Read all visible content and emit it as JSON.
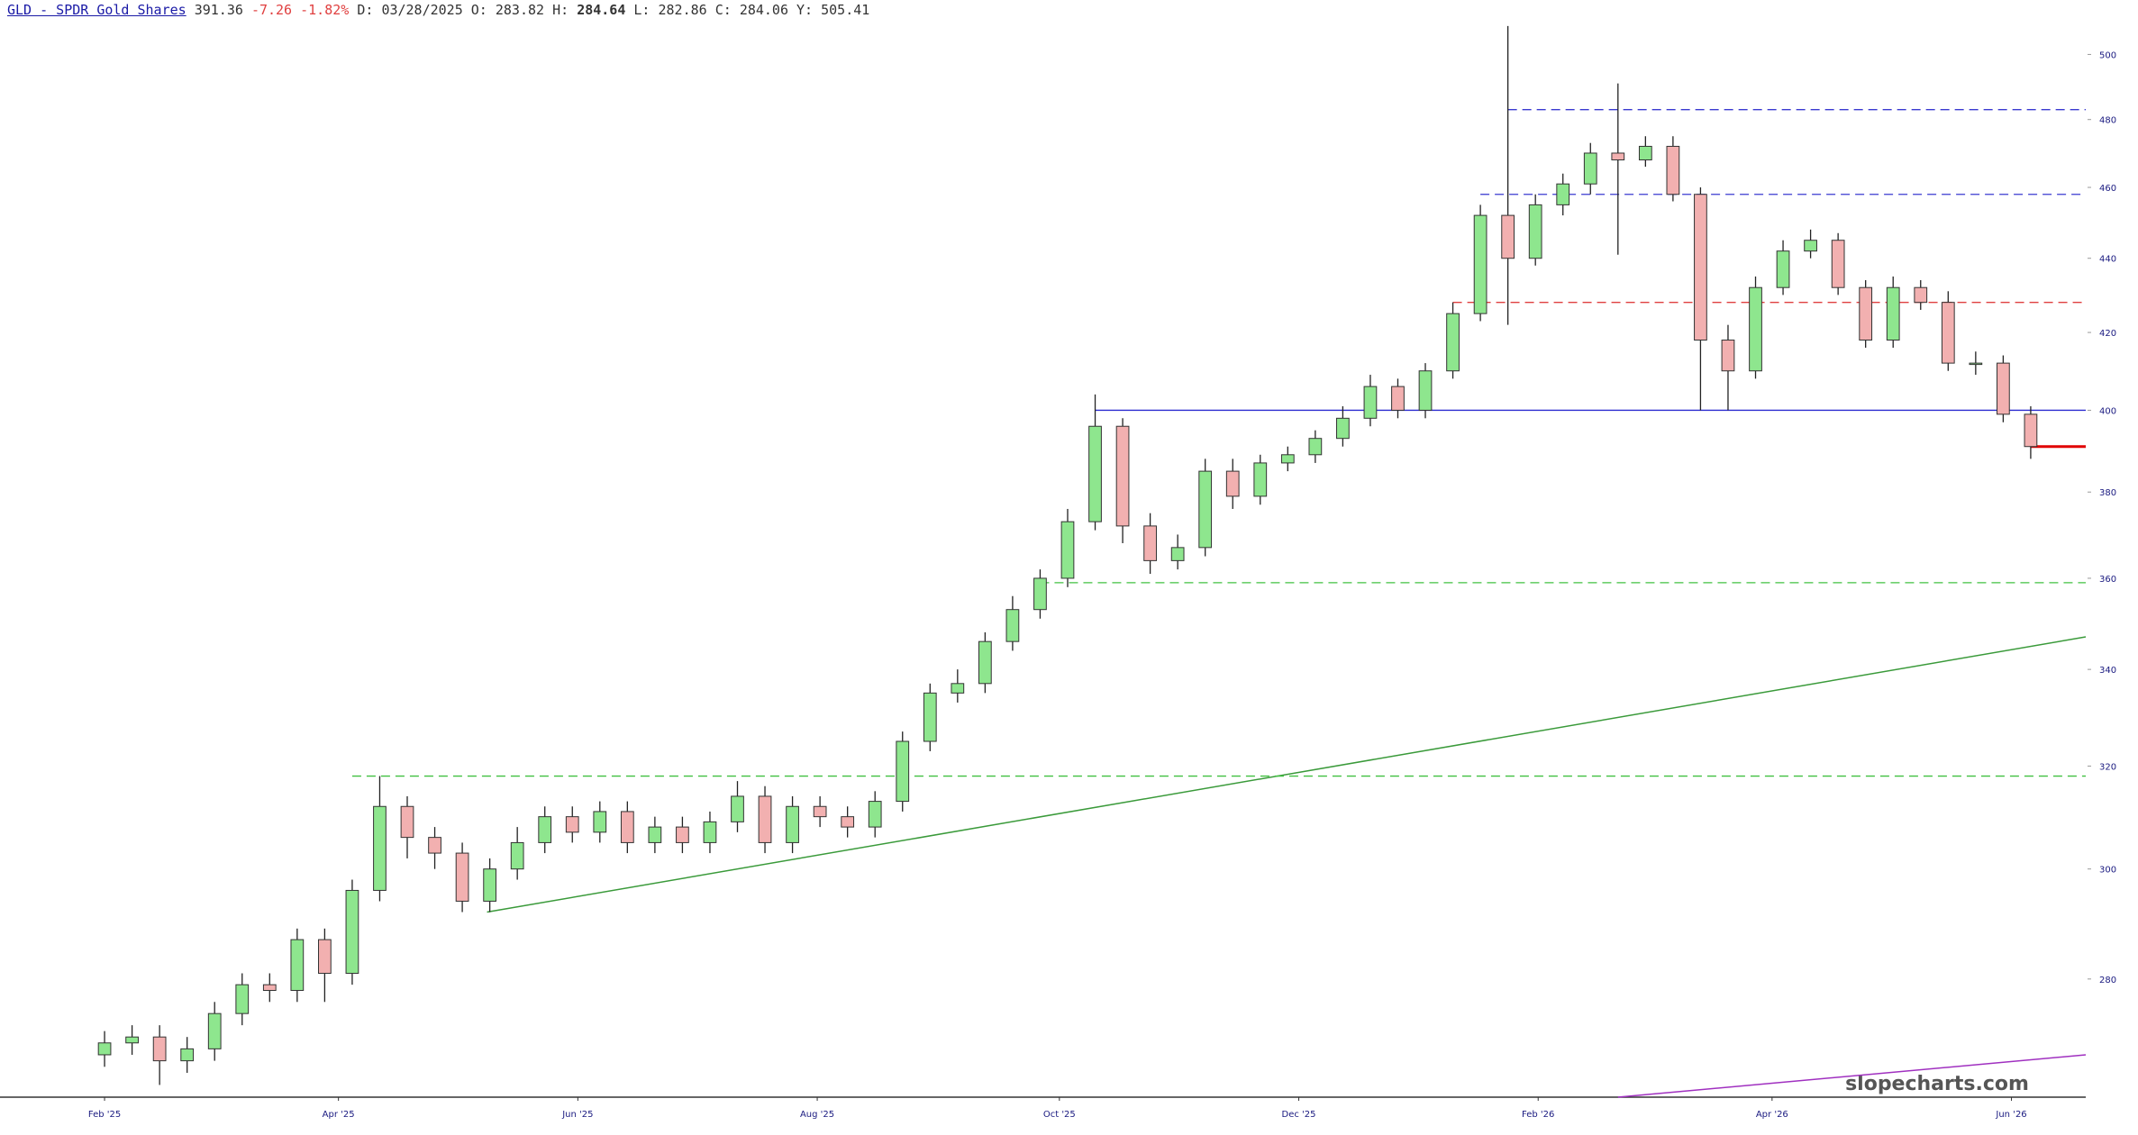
{
  "chart_data": {
    "type": "candlestick",
    "title": "GLD - SPDR Gold Shares",
    "quote": [
      "391.36",
      "-7.26",
      "-1.82%"
    ],
    "fields": [
      [
        "D:",
        "03/28/2025"
      ],
      [
        "O:",
        "283.82"
      ],
      [
        "H:",
        "284.64"
      ],
      [
        "L:",
        "282.86"
      ],
      [
        "C:",
        "284.06"
      ],
      [
        "Y:",
        "505.41"
      ]
    ],
    "watermark": "slopecharts.com",
    "log_scale": true,
    "ylim": [
      260,
      513
    ],
    "yticks": [
      280,
      300,
      320,
      340,
      360,
      380,
      400,
      420,
      440,
      460,
      480,
      500
    ],
    "xlim": [
      -3.8,
      72
    ],
    "xticks": [
      {
        "value": 0,
        "label": "Feb '25"
      },
      {
        "value": 8.5,
        "label": "Apr '25"
      },
      {
        "value": 17.2,
        "label": "Jun '25"
      },
      {
        "value": 25.9,
        "label": "Aug '25"
      },
      {
        "value": 34.7,
        "label": "Oct '25"
      },
      {
        "value": 43.4,
        "label": "Dec '25"
      },
      {
        "value": 52.1,
        "label": "Feb '26"
      },
      {
        "value": 60.6,
        "label": "Apr '26"
      },
      {
        "value": 69.3,
        "label": "Jun '26"
      }
    ],
    "up_color": "#8ee68e",
    "down_color": "#f2b0b0",
    "open": [
      267,
      269,
      270,
      266,
      268,
      274,
      279,
      278,
      287,
      281,
      296,
      312,
      306,
      303,
      294,
      300,
      305,
      310,
      307,
      311,
      305,
      308,
      305,
      309,
      314,
      305,
      312,
      310,
      308,
      313,
      325,
      335,
      337,
      346,
      353,
      360,
      373,
      396,
      372,
      364,
      367,
      385,
      379,
      387,
      389,
      393,
      398,
      406,
      400,
      410,
      425,
      452,
      440,
      455,
      461,
      470,
      468,
      472,
      458,
      418,
      410,
      432,
      442,
      445,
      432,
      418,
      432,
      428,
      412,
      412,
      399
    ],
    "high": [
      271,
      272,
      272,
      270,
      276,
      281,
      281,
      289,
      289,
      298,
      318,
      314,
      308,
      305,
      302,
      308,
      312,
      312,
      313,
      313,
      310,
      310,
      311,
      317,
      316,
      314,
      314,
      312,
      315,
      327,
      337,
      340,
      348,
      356,
      362,
      376,
      404,
      398,
      375,
      370,
      388,
      388,
      389,
      391,
      395,
      401,
      409,
      408,
      412,
      428,
      455,
      509,
      458,
      464,
      473,
      491,
      475,
      475,
      460,
      422,
      435,
      445,
      448,
      447,
      434,
      435,
      434,
      431,
      415,
      414,
      401
    ],
    "low": [
      265,
      267,
      262,
      264,
      266,
      272,
      276,
      276,
      276,
      279,
      294,
      302,
      300,
      292,
      292,
      298,
      303,
      305,
      305,
      303,
      303,
      303,
      303,
      307,
      303,
      303,
      308,
      306,
      306,
      311,
      323,
      333,
      335,
      344,
      351,
      358,
      371,
      368,
      361,
      362,
      365,
      376,
      377,
      385,
      387,
      391,
      396,
      398,
      398,
      408,
      423,
      422,
      438,
      452,
      458,
      441,
      466,
      456,
      400,
      400,
      408,
      430,
      440,
      430,
      416,
      416,
      426,
      410,
      409,
      397,
      388
    ],
    "close": [
      269,
      270,
      266,
      268,
      274,
      279,
      278,
      287,
      281,
      296,
      312,
      306,
      303,
      294,
      300,
      305,
      310,
      307,
      311,
      305,
      308,
      305,
      309,
      314,
      305,
      312,
      310,
      308,
      313,
      325,
      335,
      337,
      346,
      353,
      360,
      373,
      396,
      372,
      364,
      367,
      385,
      379,
      387,
      389,
      393,
      398,
      406,
      400,
      410,
      425,
      452,
      440,
      455,
      461,
      470,
      468,
      472,
      458,
      418,
      410,
      432,
      442,
      445,
      432,
      418,
      432,
      428,
      412,
      412,
      399,
      391
    ],
    "hlines": [
      {
        "y": 483,
        "start": 51,
        "color": "#3a3ad0",
        "dashed": true
      },
      {
        "y": 458,
        "start": 50,
        "color": "#3a3ad0",
        "dashed": true
      },
      {
        "y": 428,
        "start": 49,
        "color": "#e04040",
        "dashed": true
      },
      {
        "y": 400,
        "start": 36,
        "color": "#2a2ad0",
        "dashed": false
      },
      {
        "y": 359,
        "start": 34,
        "color": "#40c040",
        "dashed": true
      },
      {
        "y": 318,
        "start": 9,
        "color": "#40c040",
        "dashed": true
      },
      {
        "y": 391,
        "start": 70,
        "color": "#e00000",
        "dashed": false
      }
    ],
    "trendlines": [
      {
        "x": [
          13.9,
          72
        ],
        "y": [
          292,
          347
        ],
        "color": "#3a9a3a"
      },
      {
        "x": [
          55,
          72
        ],
        "y": [
          260,
          267
        ],
        "color": "#a030c0"
      }
    ]
  }
}
